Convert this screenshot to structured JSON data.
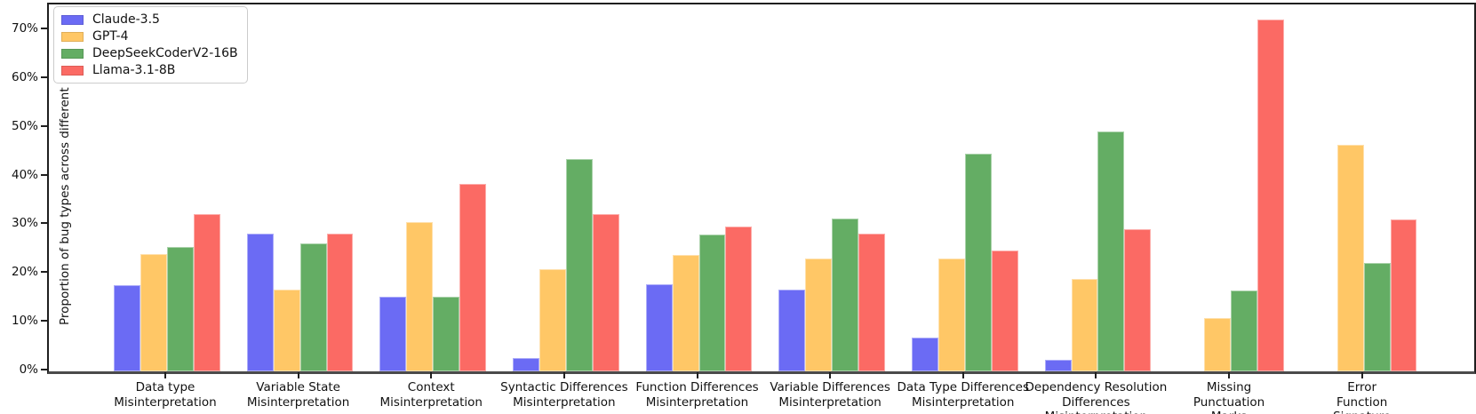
{
  "chart_data": {
    "type": "bar",
    "title": "",
    "ylabel": "Proportion of bug types across different LLMs",
    "xlabel": "",
    "ylim": [
      0,
      75
    ],
    "yticks": [
      {
        "value": 0,
        "label": "0%"
      },
      {
        "value": 10,
        "label": "10%"
      },
      {
        "value": 20,
        "label": "20%"
      },
      {
        "value": 30,
        "label": "30%"
      },
      {
        "value": 40,
        "label": "40%"
      },
      {
        "value": 50,
        "label": "50%"
      },
      {
        "value": 60,
        "label": "60%"
      },
      {
        "value": 70,
        "label": "70%"
      }
    ],
    "grid": false,
    "legend_position": "upper left",
    "categories": [
      "Data type\nMisinterpretation",
      "Variable State\nMisinterpretation",
      "Context\nMisinterpretation",
      "Syntactic Differences\nMisinterpretation",
      "Function Differences\nMisinterpretation",
      "Variable Differences\nMisinterpretation",
      "Data Type Differences\nMisinterpretation",
      "Dependency Resolution\nDifferences\nMisinterpretation",
      "Missing\nPunctuation\nMarks",
      "Error\nFunction\nSignature"
    ],
    "series": [
      {
        "name": "Claude-3.5",
        "color": "#6b6bf4",
        "values": [
          17.6,
          28.2,
          15.3,
          2.7,
          17.9,
          16.8,
          7.0,
          2.4,
          0,
          0
        ]
      },
      {
        "name": "GPT-4",
        "color": "#ffc766",
        "values": [
          24.0,
          16.8,
          30.7,
          21.0,
          23.9,
          23.2,
          23.1,
          18.9,
          10.9,
          46.5
        ]
      },
      {
        "name": "DeepSeekCoderV2-16B",
        "color": "#64ad64",
        "values": [
          25.6,
          26.3,
          15.3,
          43.6,
          28.0,
          31.3,
          44.6,
          49.3,
          16.6,
          22.2
        ]
      },
      {
        "name": "Llama-3.1-8B",
        "color": "#fb6a64",
        "values": [
          32.3,
          28.2,
          38.5,
          32.3,
          29.8,
          28.3,
          24.8,
          29.1,
          72.2,
          31.1
        ]
      }
    ]
  }
}
